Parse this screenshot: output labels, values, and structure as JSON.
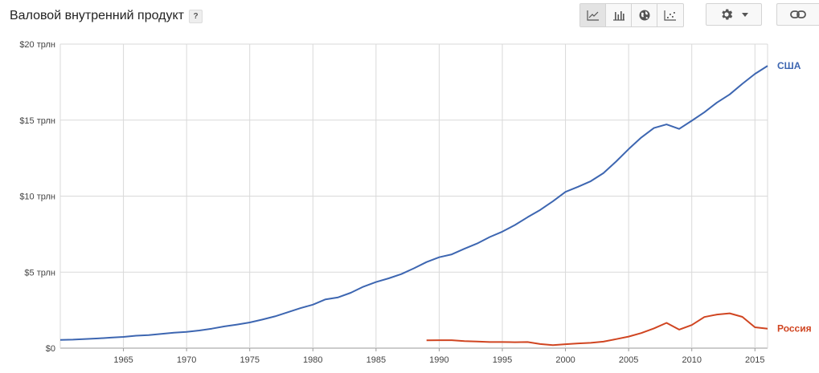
{
  "header": {
    "title": "Валовой внутренний продукт",
    "help_label": "?"
  },
  "toolbar": {
    "views": [
      {
        "icon": "line-chart-icon",
        "active": true
      },
      {
        "icon": "bar-chart-icon",
        "active": false
      },
      {
        "icon": "globe-icon",
        "active": false
      },
      {
        "icon": "scatter-chart-icon",
        "active": false
      }
    ],
    "settings_icon": "gear-icon",
    "dropdown_icon": "caret-down-icon",
    "link_icon": "link-icon"
  },
  "chart_data": {
    "type": "line",
    "title": "Валовой внутренний продукт",
    "xlim": [
      1960,
      2016
    ],
    "ylim": [
      0,
      20
    ],
    "x_ticks": [
      1965,
      1970,
      1975,
      1980,
      1985,
      1990,
      1995,
      2000,
      2005,
      2010,
      2015
    ],
    "y_ticks": [
      {
        "value": 0,
        "label": "$0"
      },
      {
        "value": 5,
        "label": "$5 трлн"
      },
      {
        "value": 10,
        "label": "$10 трлн"
      },
      {
        "value": 15,
        "label": "$15 трлн"
      },
      {
        "value": 20,
        "label": "$20 трлн"
      }
    ],
    "grid": true,
    "series": [
      {
        "name": "США",
        "color": "#3d66b1",
        "points": [
          [
            1960,
            0.54
          ],
          [
            1961,
            0.56
          ],
          [
            1962,
            0.6
          ],
          [
            1963,
            0.64
          ],
          [
            1964,
            0.69
          ],
          [
            1965,
            0.74
          ],
          [
            1966,
            0.82
          ],
          [
            1967,
            0.86
          ],
          [
            1968,
            0.94
          ],
          [
            1969,
            1.02
          ],
          [
            1970,
            1.07
          ],
          [
            1971,
            1.16
          ],
          [
            1972,
            1.28
          ],
          [
            1973,
            1.43
          ],
          [
            1974,
            1.55
          ],
          [
            1975,
            1.69
          ],
          [
            1976,
            1.88
          ],
          [
            1977,
            2.09
          ],
          [
            1978,
            2.36
          ],
          [
            1979,
            2.63
          ],
          [
            1980,
            2.86
          ],
          [
            1981,
            3.21
          ],
          [
            1982,
            3.34
          ],
          [
            1983,
            3.64
          ],
          [
            1984,
            4.04
          ],
          [
            1985,
            4.35
          ],
          [
            1986,
            4.59
          ],
          [
            1987,
            4.87
          ],
          [
            1988,
            5.25
          ],
          [
            1989,
            5.66
          ],
          [
            1990,
            5.98
          ],
          [
            1991,
            6.17
          ],
          [
            1992,
            6.54
          ],
          [
            1993,
            6.88
          ],
          [
            1994,
            7.31
          ],
          [
            1995,
            7.66
          ],
          [
            1996,
            8.1
          ],
          [
            1997,
            8.61
          ],
          [
            1998,
            9.09
          ],
          [
            1999,
            9.66
          ],
          [
            2000,
            10.28
          ],
          [
            2001,
            10.62
          ],
          [
            2002,
            10.98
          ],
          [
            2003,
            11.51
          ],
          [
            2004,
            12.27
          ],
          [
            2005,
            13.09
          ],
          [
            2006,
            13.86
          ],
          [
            2007,
            14.48
          ],
          [
            2008,
            14.72
          ],
          [
            2009,
            14.42
          ],
          [
            2010,
            14.96
          ],
          [
            2011,
            15.52
          ],
          [
            2012,
            16.16
          ],
          [
            2013,
            16.69
          ],
          [
            2014,
            17.39
          ],
          [
            2015,
            18.04
          ],
          [
            2016,
            18.57
          ]
        ]
      },
      {
        "name": "Россия",
        "color": "#d04521",
        "points": [
          [
            1989,
            0.51
          ],
          [
            1990,
            0.52
          ],
          [
            1991,
            0.52
          ],
          [
            1992,
            0.46
          ],
          [
            1993,
            0.44
          ],
          [
            1994,
            0.4
          ],
          [
            1995,
            0.4
          ],
          [
            1996,
            0.39
          ],
          [
            1997,
            0.4
          ],
          [
            1998,
            0.27
          ],
          [
            1999,
            0.2
          ],
          [
            2000,
            0.26
          ],
          [
            2001,
            0.31
          ],
          [
            2002,
            0.35
          ],
          [
            2003,
            0.43
          ],
          [
            2004,
            0.59
          ],
          [
            2005,
            0.76
          ],
          [
            2006,
            0.99
          ],
          [
            2007,
            1.3
          ],
          [
            2008,
            1.66
          ],
          [
            2009,
            1.22
          ],
          [
            2010,
            1.52
          ],
          [
            2011,
            2.05
          ],
          [
            2012,
            2.21
          ],
          [
            2013,
            2.29
          ],
          [
            2014,
            2.06
          ],
          [
            2015,
            1.37
          ],
          [
            2016,
            1.28
          ]
        ]
      }
    ]
  }
}
